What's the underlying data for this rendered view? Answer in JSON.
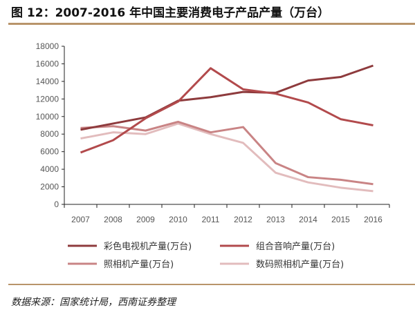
{
  "title": "图 12：2007-2016 年中国主要消费电子产品产量（万台）",
  "source": "数据来源：国家统计局，西南证券整理",
  "chart_data": {
    "type": "line",
    "title": "2007-2016 年中国主要消费电子产品产量（万台）",
    "xlabel": "",
    "ylabel": "",
    "x": [
      "2007",
      "2008",
      "2009",
      "2010",
      "2011",
      "2012",
      "2013",
      "2014",
      "2015",
      "2016"
    ],
    "ylim": [
      0,
      18000
    ],
    "yticks": [
      0,
      2000,
      4000,
      6000,
      8000,
      10000,
      12000,
      14000,
      16000,
      18000
    ],
    "grid": false,
    "legend_position": "bottom",
    "series": [
      {
        "name": "彩色电视机产量(万台)",
        "color": "#8e3b3d",
        "values": [
          8500,
          9200,
          9900,
          11800,
          12200,
          12800,
          12700,
          14100,
          14500,
          15800
        ]
      },
      {
        "name": "组合音响产量(万台)",
        "color": "#b24a4c",
        "values": [
          5900,
          7300,
          9800,
          11700,
          15500,
          13100,
          12600,
          11600,
          9700,
          9000
        ]
      },
      {
        "name": "照相机产量(万台)",
        "color": "#c98485",
        "values": [
          8700,
          8900,
          8400,
          9400,
          8200,
          8800,
          4700,
          3100,
          2800,
          2300
        ]
      },
      {
        "name": "数码照相机产量(万台)",
        "color": "#e2bcbd",
        "values": [
          7500,
          8200,
          8000,
          9200,
          8000,
          7000,
          3600,
          2500,
          1900,
          1500
        ]
      }
    ]
  }
}
